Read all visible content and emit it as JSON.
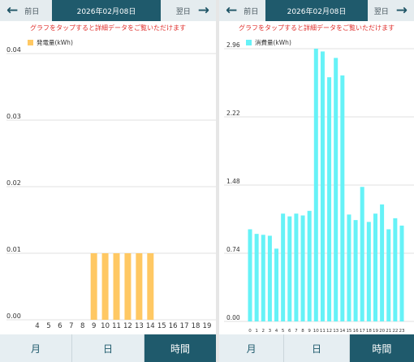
{
  "screens": [
    {
      "nav": {
        "prev_label": "前日",
        "date": "2026年02月08日",
        "next_label": "翌日"
      },
      "hint": "グラフをタップすると詳細データをご覧いただけます",
      "tabs": {
        "month": "月",
        "day": "日",
        "hour": "時間",
        "active": "hour"
      },
      "colors": {
        "bar": "#ffc863",
        "header": "#1f5a6c",
        "hint": "#e0302d"
      },
      "chart_data": {
        "type": "bar",
        "legend": "発電量(kWh)",
        "categories": [
          "4",
          "5",
          "6",
          "7",
          "8",
          "9",
          "10",
          "11",
          "12",
          "13",
          "14",
          "15",
          "16",
          "17",
          "18",
          "19"
        ],
        "values": [
          0,
          0,
          0,
          0,
          0,
          0.01,
          0.01,
          0.01,
          0.01,
          0.01,
          0.01,
          0,
          0,
          0,
          0,
          0
        ],
        "yticks": [
          "0.00",
          "0.01",
          "0.02",
          "0.03",
          "0.04"
        ],
        "ylim": [
          0,
          0.04
        ],
        "grid": true
      }
    },
    {
      "nav": {
        "prev_label": "前日",
        "date": "2026年02月08日",
        "next_label": "翌日"
      },
      "hint": "グラフをタップすると詳細データをご覧いただけます",
      "tabs": {
        "month": "月",
        "day": "日",
        "hour": "時間",
        "active": "hour"
      },
      "colors": {
        "bar": "#66f2f7",
        "header": "#1f5a6c",
        "hint": "#e0302d"
      },
      "chart_data": {
        "type": "bar",
        "legend": "消費量(kWh)",
        "categories": [
          "0",
          "1",
          "2",
          "3",
          "4",
          "5",
          "6",
          "7",
          "8",
          "9",
          "10",
          "11",
          "12",
          "13",
          "14",
          "15",
          "16",
          "17",
          "18",
          "19",
          "20",
          "21",
          "22",
          "23"
        ],
        "values": [
          1.0,
          0.95,
          0.94,
          0.93,
          0.79,
          1.17,
          1.14,
          1.17,
          1.15,
          1.2,
          2.96,
          2.93,
          2.65,
          2.86,
          2.67,
          1.16,
          1.1,
          1.46,
          1.08,
          1.17,
          1.27,
          1.0,
          1.12,
          1.04
        ],
        "yticks": [
          "0.00",
          "0.74",
          "1.48",
          "2.22",
          "2.96"
        ],
        "ylim": [
          0,
          2.96
        ],
        "grid": true
      }
    }
  ]
}
